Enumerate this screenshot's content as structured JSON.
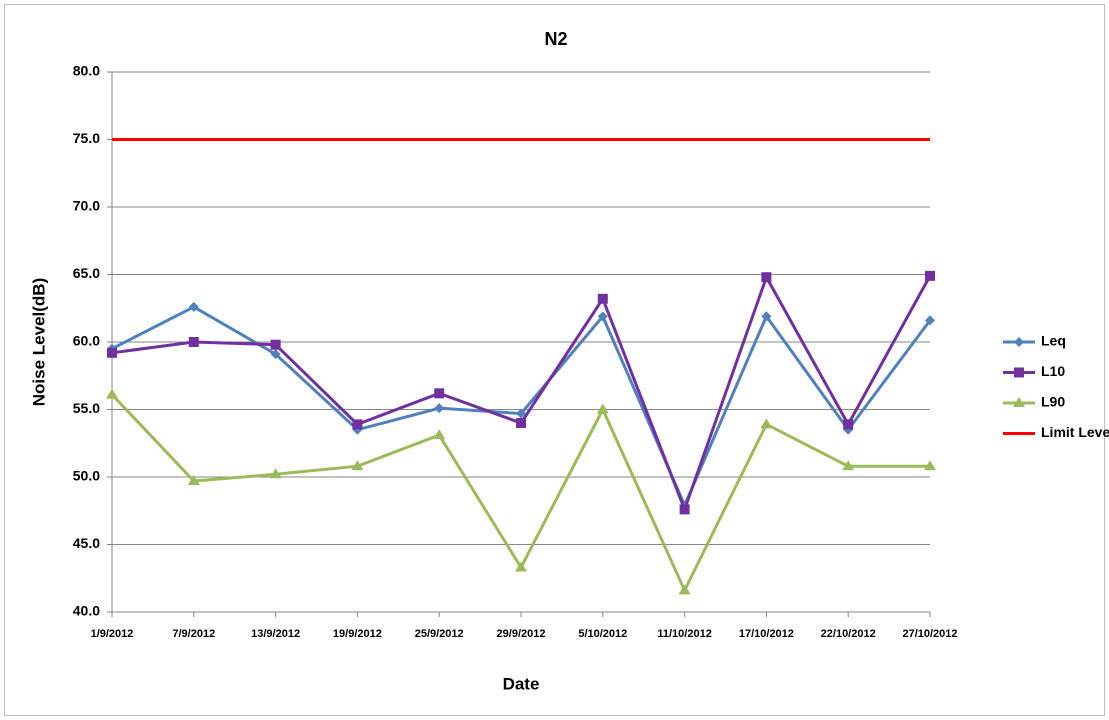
{
  "chart_data": {
    "type": "line",
    "title": "N2",
    "x_label": "Date",
    "y_label": "Noise Level(dB)",
    "categories": [
      "1/9/2012",
      "7/9/2012",
      "13/9/2012",
      "19/9/2012",
      "25/9/2012",
      "29/9/2012",
      "5/10/2012",
      "11/10/2012",
      "17/10/2012",
      "22/10/2012",
      "27/10/2012"
    ],
    "series": [
      {
        "name": "Leq",
        "color": "#4f81bd",
        "marker": "diamond",
        "values": [
          59.5,
          62.6,
          59.1,
          53.5,
          55.1,
          54.7,
          61.9,
          47.9,
          61.9,
          53.5,
          61.6
        ]
      },
      {
        "name": "L10",
        "color": "#7030a0",
        "marker": "square",
        "values": [
          59.2,
          60.0,
          59.8,
          53.9,
          56.2,
          54.0,
          63.2,
          47.6,
          64.8,
          53.9,
          64.9
        ]
      },
      {
        "name": "L90",
        "color": "#9bbb59",
        "marker": "triangle",
        "values": [
          56.1,
          49.7,
          50.2,
          50.8,
          53.1,
          43.3,
          55.0,
          41.6,
          53.9,
          50.8,
          50.8
        ]
      },
      {
        "name": "Limit Level",
        "color": "#ff0000",
        "marker": "none",
        "values": [
          75,
          75,
          75,
          75,
          75,
          75,
          75,
          75,
          75,
          75,
          75
        ]
      }
    ],
    "ylim": [
      40,
      80
    ],
    "yticks": [
      {
        "value": 40,
        "label": "40.0"
      },
      {
        "value": 45,
        "label": "45.0"
      },
      {
        "value": 50,
        "label": "50.0"
      },
      {
        "value": 55,
        "label": "55.0"
      },
      {
        "value": 60,
        "label": "60.0"
      },
      {
        "value": 65,
        "label": "65.0"
      },
      {
        "value": 70,
        "label": "70.0"
      },
      {
        "value": 75,
        "label": "75.0"
      },
      {
        "value": 80,
        "label": "80.0"
      }
    ],
    "grid": true,
    "legend": "right"
  }
}
